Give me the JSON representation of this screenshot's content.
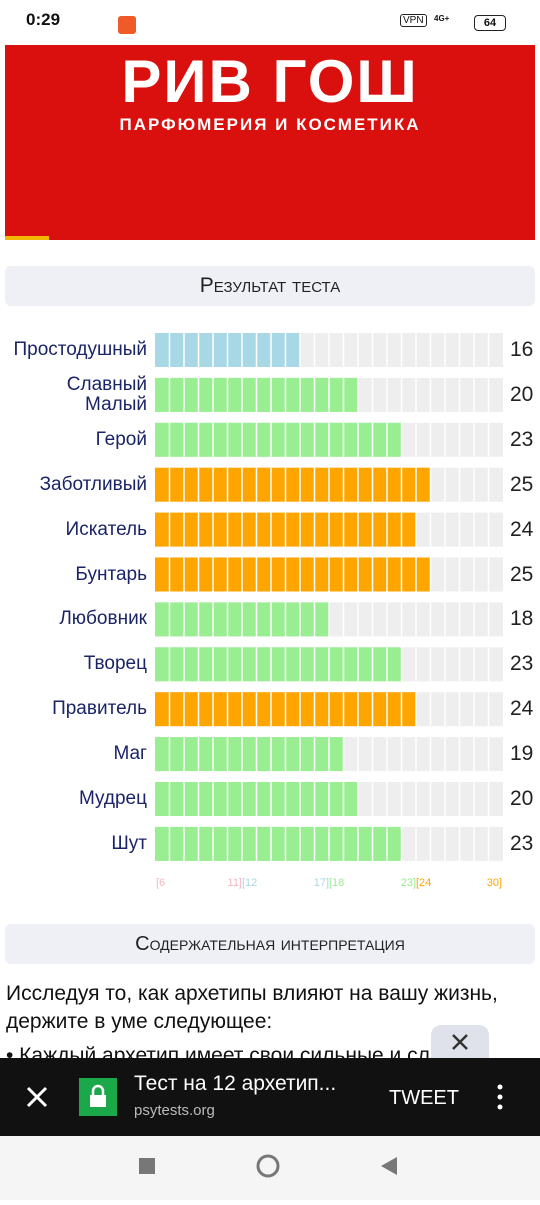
{
  "status_bar": {
    "time": "0:29",
    "vpn": "VPN",
    "network": "4G+",
    "battery": "64"
  },
  "banner": {
    "title": "РИВ ГОШ",
    "subtitle": "ПАРФЮМЕРИЯ И КОСМЕТИКА"
  },
  "results_header": "Результат теста",
  "chart_data": {
    "type": "bar",
    "orientation": "horizontal",
    "categories": [
      "Простодушный",
      "Славный Малый",
      "Герой",
      "Заботливый",
      "Искатель",
      "Бунтарь",
      "Любовник",
      "Творец",
      "Правитель",
      "Маг",
      "Мудрец",
      "Шут"
    ],
    "values": [
      16,
      20,
      23,
      25,
      24,
      25,
      18,
      23,
      24,
      19,
      20,
      23
    ],
    "xlim": [
      6,
      30
    ],
    "ranges": [
      {
        "from": 6,
        "to": 11,
        "from_label": "[6",
        "to_label": "11]",
        "color": "#f4b6c2"
      },
      {
        "from": 12,
        "to": 17,
        "from_label": "[12",
        "to_label": "17]",
        "color": "#a8d8e6"
      },
      {
        "from": 18,
        "to": 23,
        "from_label": "[18",
        "to_label": "23]",
        "color": "#98ee90"
      },
      {
        "from": 24,
        "to": 30,
        "from_label": "[24",
        "to_label": "30]",
        "color": "#ffa500"
      }
    ]
  },
  "interpretation_header": "Содержательная интерпретация",
  "paragraph": "Исследуя то, как архетипы влияют на вашу жизнь, держите в уме следующее:",
  "bullet": "• Каждый архетип имеет свои сильные и слабые",
  "ad_bar": {
    "title": "Тест на 12 архетип...",
    "domain": "psytests.org",
    "action": "TWEET"
  }
}
